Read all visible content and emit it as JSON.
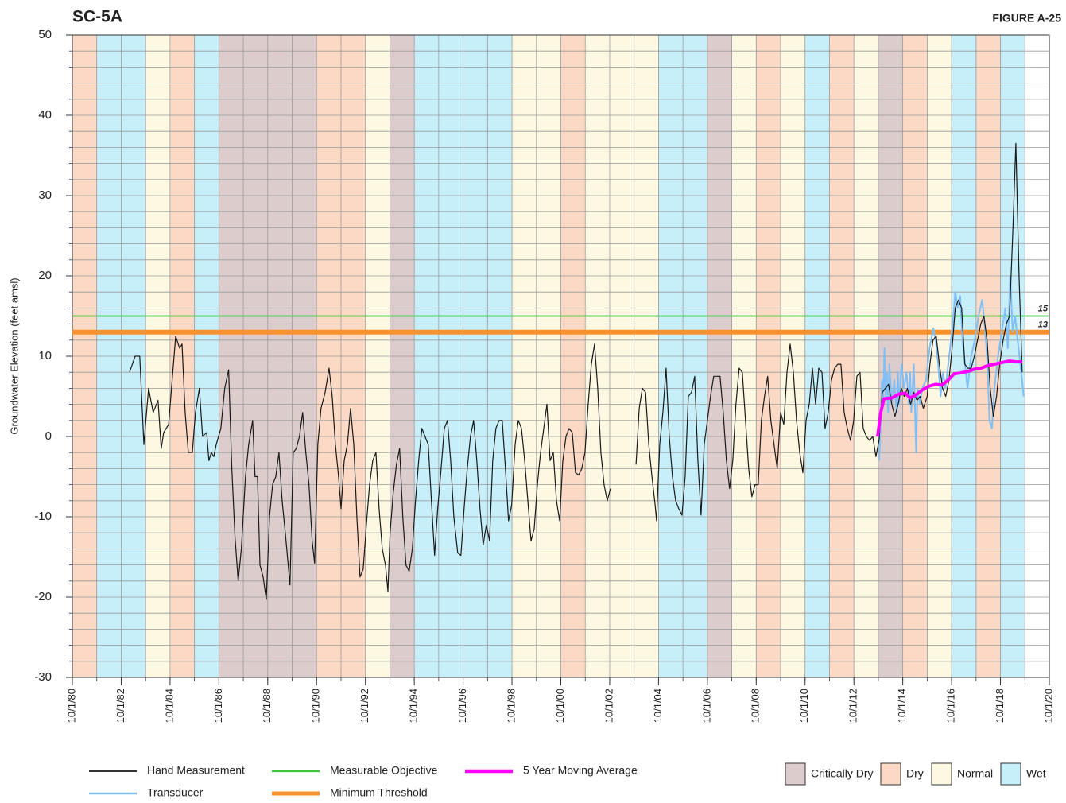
{
  "chart_data": {
    "type": "line",
    "title": "SC-5A",
    "figure_label": "FIGURE A-25",
    "y_label": "Groundwater Elevation (feet amsl)",
    "xlim": [
      1980.75,
      2020.75
    ],
    "ylim": [
      -30,
      50
    ],
    "yticks": [
      -30,
      -20,
      -10,
      0,
      10,
      20,
      30,
      40,
      50
    ],
    "yminorticks": [
      -30,
      -28,
      -26,
      -24,
      -22,
      -20,
      -18,
      -16,
      -14,
      -12,
      -10,
      -8,
      -6,
      -4,
      -2,
      0,
      2,
      4,
      6,
      8,
      10,
      12,
      14,
      16,
      18,
      20,
      22,
      24,
      26,
      28,
      30,
      32,
      34,
      36,
      38,
      40,
      42,
      44,
      46,
      48,
      50
    ],
    "xticks": [
      {
        "value": 1980.75,
        "label": "10/1/80"
      },
      {
        "value": 1982.75,
        "label": "10/1/82"
      },
      {
        "value": 1984.75,
        "label": "10/1/84"
      },
      {
        "value": 1986.75,
        "label": "10/1/86"
      },
      {
        "value": 1988.75,
        "label": "10/1/88"
      },
      {
        "value": 1990.75,
        "label": "10/1/90"
      },
      {
        "value": 1992.75,
        "label": "10/1/92"
      },
      {
        "value": 1994.75,
        "label": "10/1/94"
      },
      {
        "value": 1996.75,
        "label": "10/1/96"
      },
      {
        "value": 1998.75,
        "label": "10/1/98"
      },
      {
        "value": 2000.75,
        "label": "10/1/00"
      },
      {
        "value": 2002.75,
        "label": "10/1/02"
      },
      {
        "value": 2004.75,
        "label": "10/1/04"
      },
      {
        "value": 2006.75,
        "label": "10/1/06"
      },
      {
        "value": 2008.75,
        "label": "10/1/08"
      },
      {
        "value": 2010.75,
        "label": "10/1/10"
      },
      {
        "value": 2012.75,
        "label": "10/1/12"
      },
      {
        "value": 2014.75,
        "label": "10/1/14"
      },
      {
        "value": 2016.75,
        "label": "10/1/16"
      },
      {
        "value": 2018.75,
        "label": "10/1/18"
      },
      {
        "value": 2020.75,
        "label": "10/1/20"
      }
    ],
    "year_type_legend": [
      {
        "name": "Critically Dry",
        "color": "#dccccc"
      },
      {
        "name": "Dry",
        "color": "#fbd9c4"
      },
      {
        "name": "Normal",
        "color": "#fdf8e2"
      },
      {
        "name": "Wet",
        "color": "#c6eff9"
      }
    ],
    "bands": {
      "starts": [
        1980.75,
        1981.75,
        1982.75,
        1983.75,
        1984.75,
        1985.75,
        1986.75,
        1987.75,
        1988.75,
        1989.75,
        1990.75,
        1991.75,
        1992.75,
        1993.75,
        1994.75,
        1995.75,
        1996.75,
        1997.75,
        1998.75,
        1999.75,
        2000.75,
        2001.75,
        2002.75,
        2003.75,
        2004.75,
        2005.75,
        2006.75,
        2007.75,
        2008.75,
        2009.75,
        2010.75,
        2011.75,
        2012.75,
        2013.75,
        2014.75,
        2015.75,
        2016.75,
        2017.75,
        2018.75,
        2019.75
      ],
      "types": [
        1,
        3,
        3,
        2,
        1,
        3,
        0,
        0,
        0,
        0,
        1,
        1,
        2,
        0,
        3,
        3,
        3,
        3,
        2,
        2,
        1,
        2,
        2,
        2,
        3,
        3,
        0,
        2,
        1,
        2,
        3,
        1,
        2,
        0,
        1,
        2,
        3,
        1,
        3,
        null
      ]
    },
    "reference_lines": [
      {
        "name": "Measurable Objective",
        "value": 15,
        "color": "#3cc83c",
        "width": 1.8
      },
      {
        "name": "Minimum Threshold",
        "value": 13,
        "color": "#f7922f",
        "width": 6
      }
    ],
    "series": [
      {
        "name": "Hand Measurement",
        "color": "#1a1a1a",
        "width": 1.2,
        "x": [
          1983.09,
          1983.32,
          1983.51,
          1983.68,
          1983.87,
          1984.06,
          1984.26,
          1984.39,
          1984.49,
          1984.69,
          1984.98,
          1985.14,
          1985.24,
          1985.37,
          1985.5,
          1985.66,
          1985.79,
          1985.95,
          1986.08,
          1986.25,
          1986.34,
          1986.44,
          1986.54,
          1986.64,
          1986.83,
          1986.99,
          1987.15,
          1987.28,
          1987.41,
          1987.54,
          1987.67,
          1987.84,
          1987.97,
          1988.13,
          1988.23,
          1988.33,
          1988.43,
          1988.56,
          1988.69,
          1988.82,
          1988.95,
          1989.08,
          1989.21,
          1989.34,
          1989.47,
          1989.66,
          1989.79,
          1989.92,
          1990.05,
          1990.18,
          1990.31,
          1990.44,
          1990.57,
          1990.67,
          1990.8,
          1990.93,
          1991.1,
          1991.26,
          1991.39,
          1991.52,
          1991.65,
          1991.75,
          1991.88,
          1992.01,
          1992.14,
          1992.27,
          1992.4,
          1992.53,
          1992.66,
          1992.79,
          1992.92,
          1993.05,
          1993.18,
          1993.31,
          1993.44,
          1993.57,
          1993.67,
          1993.76,
          1993.89,
          1994.02,
          1994.15,
          1994.28,
          1994.41,
          1994.54,
          1994.67,
          1994.8,
          1994.93,
          1995.06,
          1995.19,
          1995.32,
          1995.45,
          1995.58,
          1995.71,
          1995.85,
          1995.98,
          1996.11,
          1996.24,
          1996.37,
          1996.53,
          1996.66,
          1996.79,
          1996.92,
          1997.05,
          1997.18,
          1997.31,
          1997.44,
          1997.57,
          1997.7,
          1997.83,
          1997.96,
          1998.09,
          1998.22,
          1998.35,
          1998.48,
          1998.61,
          1998.74,
          1998.88,
          1999.01,
          1999.14,
          1999.27,
          1999.4,
          1999.53,
          1999.66,
          1999.79,
          1999.92,
          2000.05,
          2000.18,
          2000.31,
          2000.44,
          2000.57,
          2000.7,
          2000.83,
          2000.96,
          2001.09,
          2001.22,
          2001.35,
          2001.48,
          2001.61,
          2001.74,
          2001.87,
          2002.0,
          2002.13,
          2002.26,
          2002.39,
          2002.52,
          2002.65,
          2002.78,
          2003.2,
          2003.83,
          2003.96,
          2004.09,
          2004.22,
          2004.35,
          2004.48,
          2004.61,
          2004.67,
          2004.8,
          2004.93,
          2005.06,
          2005.19,
          2005.32,
          2005.45,
          2005.58,
          2005.71,
          2005.84,
          2005.97,
          2006.1,
          2006.23,
          2006.36,
          2006.49,
          2006.62,
          2006.75,
          2006.88,
          2007.01,
          2007.14,
          2007.27,
          2007.4,
          2007.53,
          2007.66,
          2007.79,
          2007.92,
          2008.05,
          2008.18,
          2008.31,
          2008.44,
          2008.57,
          2008.7,
          2008.83,
          2008.96,
          2009.09,
          2009.22,
          2009.35,
          2009.48,
          2009.61,
          2009.75,
          2009.88,
          2010.01,
          2010.14,
          2010.27,
          2010.4,
          2010.53,
          2010.66,
          2010.79,
          2010.92,
          2011.05,
          2011.18,
          2011.31,
          2011.44,
          2011.57,
          2011.7,
          2011.83,
          2011.96,
          2012.09,
          2012.22,
          2012.35,
          2012.48,
          2012.61,
          2012.74,
          2012.87,
          2013.0,
          2013.13,
          2013.26,
          2013.39,
          2013.52,
          2013.65,
          2013.78,
          2013.91,
          2014.04,
          2014.17,
          2014.3,
          2014.43,
          2014.56,
          2014.69,
          2014.81,
          2014.94,
          2015.07,
          2015.2,
          2015.33,
          2015.46,
          2015.59,
          2015.75,
          2015.86,
          2015.99,
          2016.12,
          2016.25,
          2016.38,
          2016.51,
          2016.64,
          2016.77,
          2016.9,
          2017.03,
          2017.16,
          2017.29,
          2017.42,
          2017.55,
          2017.68,
          2017.81,
          2017.94,
          2018.07,
          2018.2,
          2018.33,
          2018.46,
          2018.59,
          2018.72,
          2018.86,
          2018.99,
          2019.12,
          2019.25,
          2019.38,
          2019.51,
          2019.64
        ],
        "values": [
          8,
          10,
          10,
          -1,
          6,
          3,
          4.5,
          -1.5,
          0.5,
          1.5,
          12.5,
          11,
          11.5,
          3,
          -2,
          -2,
          3,
          6,
          0,
          0.5,
          -3,
          -2,
          -2.5,
          -1,
          1,
          6,
          8.3,
          -4,
          -12.5,
          -18,
          -14,
          -5,
          -1,
          2,
          -5,
          -5,
          -16,
          -17.5,
          -20.3,
          -10,
          -6,
          -5,
          -2,
          -8,
          -12,
          -18.5,
          -2,
          -1.5,
          0,
          3,
          -2,
          -6,
          -13,
          -15.8,
          -1,
          3.5,
          5.5,
          8.5,
          5,
          -1,
          -5,
          -9,
          -3,
          -1,
          3.5,
          -1,
          -10,
          -17.5,
          -16.5,
          -11,
          -6,
          -3,
          -2,
          -9,
          -14,
          -16,
          -19.3,
          -12,
          -7,
          -3.5,
          -1.5,
          -10,
          -16,
          -16.8,
          -14,
          -8,
          -3,
          1,
          0,
          -1,
          -8,
          -14.8,
          -9,
          -4,
          1,
          2,
          -3,
          -10,
          -14.5,
          -14.8,
          -9,
          -4,
          0,
          2,
          -3,
          -9,
          -13.5,
          -11,
          -13,
          -3,
          1,
          2,
          2,
          -4,
          -10.5,
          -8.5,
          -1,
          2,
          1,
          -3,
          -8,
          -13,
          -11.5,
          -6,
          -2,
          1,
          4,
          -3,
          -2,
          -8,
          -10.5,
          -3,
          0,
          1,
          0.5,
          -4.5,
          -4.8,
          -4,
          -2,
          4,
          9,
          11.5,
          6,
          -2,
          -6,
          -8,
          -6.5,
          null,
          -3.5,
          3.5,
          6,
          5.5,
          -1,
          -5,
          -8.5,
          -10.5,
          -1,
          3,
          8.5,
          0,
          -5,
          -8,
          -9,
          -9.8,
          -5,
          5,
          5.5,
          7.5,
          -3,
          -9.8,
          -1,
          2,
          5,
          7.5,
          7.5,
          7.5,
          3,
          -3,
          -6.5,
          -3,
          4,
          8.5,
          8,
          2,
          -4,
          -7.5,
          -6,
          -6,
          2,
          5,
          7.5,
          2,
          -1,
          -4,
          3,
          1.5,
          8,
          11.5,
          8,
          2,
          -2,
          -4.5,
          2,
          4,
          8.5,
          4,
          8.5,
          8,
          1,
          3,
          7,
          8.5,
          9,
          9,
          3,
          1,
          -0.5,
          2,
          7.5,
          8,
          1,
          0,
          -0.5,
          0,
          -2.5,
          -0.5,
          5.5,
          6,
          6.5,
          4,
          2.5,
          4,
          6,
          5,
          6,
          4,
          5.5,
          4.5,
          5,
          3.5,
          5,
          9,
          12,
          12.5,
          9,
          6,
          5,
          7,
          11,
          16,
          17,
          16,
          9,
          8.5,
          8.5,
          10,
          12,
          14,
          15,
          12,
          6,
          2.5,
          5,
          9,
          12,
          14,
          15,
          25,
          36.5,
          20,
          8
        ]
      },
      {
        "name": "Transducer",
        "color": "#7fbff5",
        "width": 2,
        "x": [
          2013.78,
          2013.85,
          2013.9,
          2013.95,
          2014.0,
          2014.05,
          2014.1,
          2014.15,
          2014.2,
          2014.3,
          2014.4,
          2014.5,
          2014.55,
          2014.6,
          2014.7,
          2014.8,
          2014.9,
          2015.0,
          2015.05,
          2015.1,
          2015.2,
          2015.3,
          2015.35,
          2015.45,
          2015.55,
          2015.7,
          2015.85,
          2016.0,
          2016.1,
          2016.2,
          2016.3,
          2016.4,
          2016.5,
          2016.65,
          2016.8,
          2016.9,
          2017.0,
          2017.1,
          2017.2,
          2017.3,
          2017.4,
          2017.55,
          2017.7,
          2017.85,
          2018.0,
          2018.1,
          2018.2,
          2018.3,
          2018.4,
          2018.5,
          2018.65,
          2018.8,
          2018.95,
          2019.05,
          2019.15,
          2019.25,
          2019.35,
          2019.45,
          2019.6,
          2019.7
        ],
        "values": [
          -3,
          2,
          7,
          4,
          11,
          5,
          8,
          3,
          9,
          4,
          7,
          3,
          8,
          4,
          9,
          6,
          8,
          4,
          8,
          3,
          9,
          -2,
          6,
          4,
          6,
          7,
          11,
          13.5,
          12,
          9,
          5,
          8,
          6,
          10,
          14,
          18,
          16,
          17.5,
          12,
          9,
          6,
          10,
          12,
          15,
          17,
          14,
          10,
          2,
          1,
          6,
          10,
          13,
          16,
          11,
          20,
          13,
          15,
          12,
          8,
          5
        ]
      },
      {
        "name": "5 Year Moving Average",
        "color": "#ff00ff",
        "width": 4,
        "x": [
          2013.72,
          2013.85,
          2013.98,
          2014.3,
          2014.6,
          2014.85,
          2015.05,
          2015.3,
          2015.55,
          2015.85,
          2016.1,
          2016.35,
          2016.6,
          2016.85,
          2017.1,
          2017.4,
          2017.7,
          2017.95,
          2018.2,
          2018.5,
          2018.8,
          2019.1,
          2019.4,
          2019.65
        ],
        "values": [
          0,
          3,
          4.7,
          4.8,
          5.3,
          5.4,
          4.8,
          5.2,
          5.8,
          6.3,
          6.5,
          6.4,
          7.0,
          7.8,
          7.9,
          8.1,
          8.4,
          8.5,
          8.8,
          9.0,
          9.2,
          9.4,
          9.3,
          9.3
        ]
      }
    ],
    "grid": true
  }
}
